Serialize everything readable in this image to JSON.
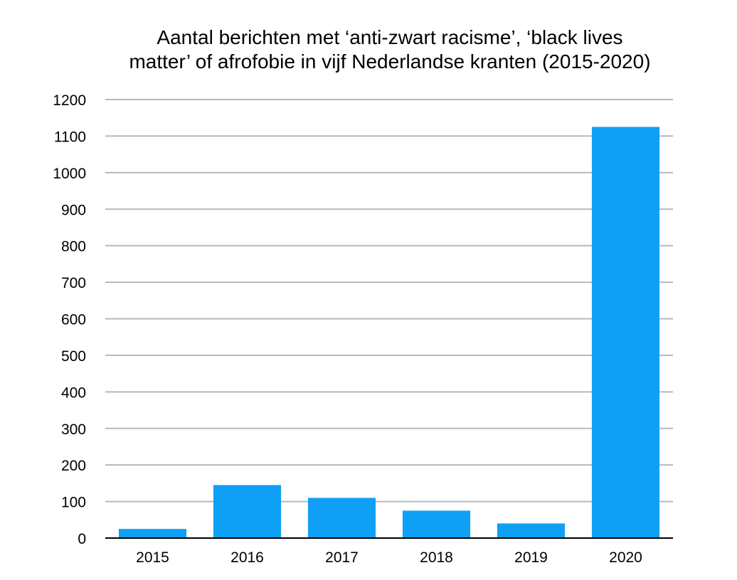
{
  "chart_data": {
    "type": "bar",
    "title_lines": [
      "Aantal berichten met ‘anti-zwart racisme’, ‘black lives",
      "matter’ of afrofobie in vijf Nederlandse kranten (2015-2020)"
    ],
    "categories": [
      "2015",
      "2016",
      "2017",
      "2018",
      "2019",
      "2020"
    ],
    "values": [
      25,
      145,
      110,
      75,
      40,
      1125
    ],
    "ylim": [
      0,
      1200
    ],
    "yticks": [
      0,
      100,
      200,
      300,
      400,
      500,
      600,
      700,
      800,
      900,
      1000,
      1100,
      1200
    ],
    "grid": true,
    "bar_color": "#0fa0f5",
    "grid_color": "#b8b8b8",
    "axis_color": "#000000"
  }
}
